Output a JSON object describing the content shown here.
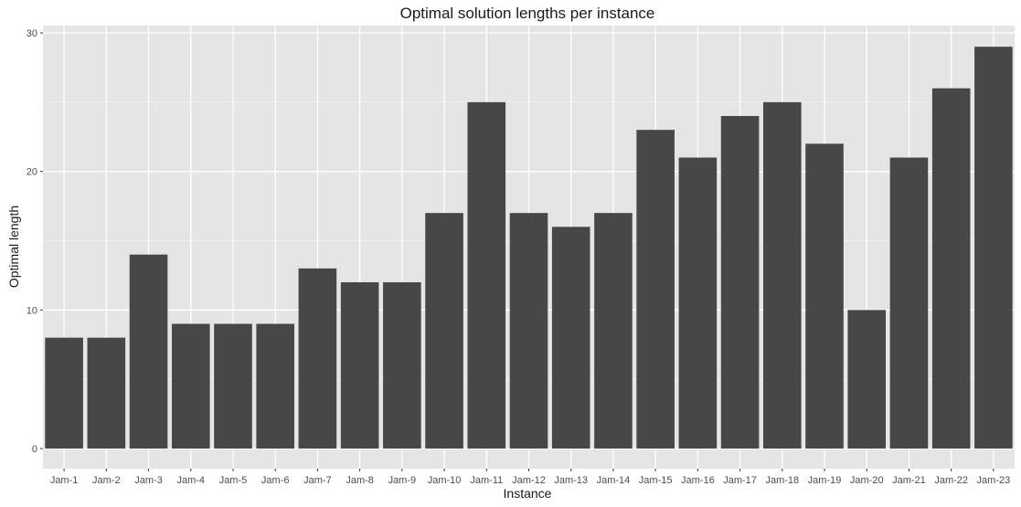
{
  "chart_data": {
    "type": "bar",
    "title": "Optimal solution lengths per instance",
    "xlabel": "Instance",
    "ylabel": "Optimal length",
    "categories": [
      "Jam-1",
      "Jam-2",
      "Jam-3",
      "Jam-4",
      "Jam-5",
      "Jam-6",
      "Jam-7",
      "Jam-8",
      "Jam-9",
      "Jam-10",
      "Jam-11",
      "Jam-12",
      "Jam-13",
      "Jam-14",
      "Jam-15",
      "Jam-16",
      "Jam-17",
      "Jam-18",
      "Jam-19",
      "Jam-20",
      "Jam-21",
      "Jam-22",
      "Jam-23"
    ],
    "values": [
      8,
      8,
      14,
      9,
      9,
      9,
      13,
      12,
      12,
      17,
      25,
      17,
      16,
      17,
      23,
      21,
      24,
      25,
      22,
      10,
      21,
      26,
      29
    ],
    "ylim": [
      0,
      30
    ],
    "yticks": [
      0,
      10,
      20,
      30
    ],
    "grid": true,
    "colors": {
      "bar": "#474747",
      "panel": "#e5e5e5",
      "grid_major": "#ffffff",
      "grid_minor": "#f2f2f2"
    }
  }
}
